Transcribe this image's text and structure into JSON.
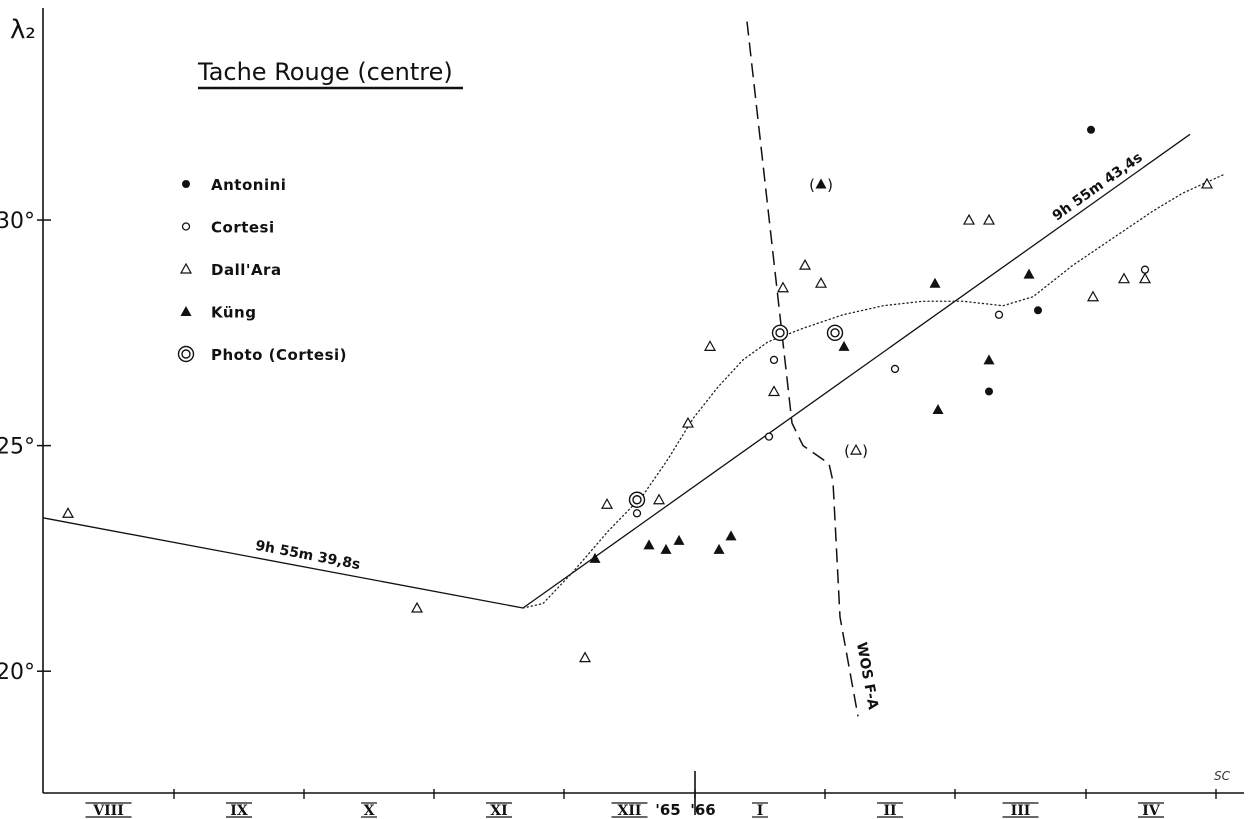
{
  "chart_data": {
    "type": "scatter",
    "title": "Tache Rouge (centre)",
    "ylabel": "λ₂",
    "ylim": [
      17.3,
      34.7
    ],
    "xlim": [
      0,
      1201
    ],
    "y_ticks": [
      {
        "value": 20,
        "label": "20°"
      },
      {
        "value": 25,
        "label": "25°"
      },
      {
        "value": 30,
        "label": "30°"
      }
    ],
    "months": [
      "VIII",
      "IX",
      "X",
      "XI",
      "XII",
      "I",
      "II",
      "III",
      "IV"
    ],
    "month_ticks": [
      131,
      261,
      391,
      521,
      652,
      782,
      912,
      1043,
      1173
    ],
    "year_labels": [
      {
        "label": "'65",
        "x": 625
      },
      {
        "label": "'66",
        "x": 660
      }
    ],
    "year_boundary": 652,
    "legend": [
      {
        "label": "Antonini",
        "marker": "dot"
      },
      {
        "label": "Cortesi",
        "marker": "circle"
      },
      {
        "label": "Dall'Ara",
        "marker": "triangle-open"
      },
      {
        "label": "Küng",
        "marker": "triangle-filled"
      },
      {
        "label": "Photo (Cortesi)",
        "marker": "double-circle"
      }
    ],
    "series": [
      {
        "name": "Antonini",
        "marker": "dot",
        "points": [
          [
            1048,
            32.0
          ],
          [
            946,
            26.2
          ],
          [
            995,
            28.0
          ]
        ]
      },
      {
        "name": "Cortesi",
        "marker": "circle",
        "points": [
          [
            594,
            23.5
          ],
          [
            731,
            26.9
          ],
          [
            726,
            25.2
          ],
          [
            852,
            26.7
          ],
          [
            956,
            27.9
          ],
          [
            1102,
            28.9
          ]
        ]
      },
      {
        "name": "Dall'Ara",
        "marker": "triangle-open",
        "points": [
          [
            25,
            23.5
          ],
          [
            374,
            21.4
          ],
          [
            542,
            20.3
          ],
          [
            564,
            23.7
          ],
          [
            616,
            23.8
          ],
          [
            645,
            25.5
          ],
          [
            667,
            27.2
          ],
          [
            731,
            26.2
          ],
          [
            740,
            28.5
          ],
          [
            762,
            29.0
          ],
          [
            778,
            28.6
          ],
          [
            926,
            30.0
          ],
          [
            946,
            30.0
          ],
          [
            1050,
            28.3
          ],
          [
            1081,
            28.7
          ],
          [
            1102,
            28.7
          ],
          [
            1164,
            30.8
          ]
        ]
      },
      {
        "name": "Küng",
        "marker": "triangle-filled",
        "points": [
          [
            552,
            22.5
          ],
          [
            606,
            22.8
          ],
          [
            623,
            22.7
          ],
          [
            636,
            22.9
          ],
          [
            676,
            22.7
          ],
          [
            688,
            23.0
          ],
          [
            778,
            30.8
          ],
          [
            801,
            27.2
          ],
          [
            892,
            28.6
          ],
          [
            895,
            25.8
          ],
          [
            946,
            26.9
          ],
          [
            986,
            28.8
          ]
        ]
      },
      {
        "name": "Photo (Cortesi)",
        "marker": "double-circle",
        "points": [
          [
            594,
            23.8
          ],
          [
            737,
            27.5
          ],
          [
            792,
            27.5
          ]
        ]
      }
    ],
    "bracketed_points": [
      {
        "marker": "triangle-filled",
        "x": 778,
        "y": 30.8
      },
      {
        "marker": "triangle-open",
        "x": 813,
        "y": 24.9
      }
    ],
    "lines": [
      {
        "label": "9h 55m 39,8s",
        "points": [
          [
            0,
            23.4
          ],
          [
            480,
            21.4
          ]
        ]
      },
      {
        "label": "9h 55m 43,4s",
        "points": [
          [
            480,
            21.4
          ],
          [
            1147,
            31.9
          ]
        ]
      }
    ],
    "wos_line": {
      "label": "WOS F-A",
      "points": [
        [
          704,
          34.4
        ],
        [
          749,
          25.5
        ],
        [
          760,
          25.0
        ],
        [
          786,
          24.6
        ],
        [
          790,
          24.2
        ],
        [
          797,
          21.2
        ],
        [
          815,
          19.0
        ]
      ]
    },
    "dotted_curve": [
      [
        480,
        21.4
      ],
      [
        500,
        21.5
      ],
      [
        530,
        22.2
      ],
      [
        565,
        23.1
      ],
      [
        600,
        23.9
      ],
      [
        625,
        24.7
      ],
      [
        650,
        25.6
      ],
      [
        675,
        26.3
      ],
      [
        700,
        26.9
      ],
      [
        725,
        27.3
      ],
      [
        760,
        27.6
      ],
      [
        800,
        27.9
      ],
      [
        840,
        28.1
      ],
      [
        880,
        28.2
      ],
      [
        920,
        28.2
      ],
      [
        960,
        28.1
      ],
      [
        990,
        28.3
      ],
      [
        1030,
        29.0
      ],
      [
        1070,
        29.6
      ],
      [
        1110,
        30.2
      ],
      [
        1140,
        30.6
      ],
      [
        1180,
        31.0
      ]
    ],
    "signature": "SC"
  }
}
